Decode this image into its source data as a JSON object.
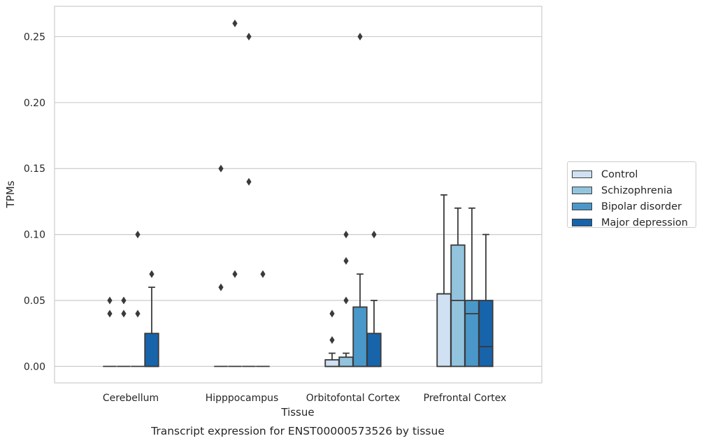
{
  "chart_data": {
    "type": "boxplot",
    "title": "Transcript expression for ENST00000573526 by tissue",
    "xlabel": "Tissue",
    "ylabel": "TPMs",
    "ylim": [
      -0.0125,
      0.273
    ],
    "yticks": [
      0.0,
      0.05,
      0.1,
      0.15,
      0.2,
      0.25
    ],
    "ytick_labels": [
      "0.00",
      "0.05",
      "0.10",
      "0.15",
      "0.20",
      "0.25"
    ],
    "grid": "horizontal",
    "legend_position": "right",
    "categories": [
      "Cerebellum",
      "Hipppocampus",
      "Orbitofontal Cortex",
      "Prefrontal Cortex"
    ],
    "series": [
      {
        "name": "Control",
        "color": "#cfe1f2",
        "boxes": [
          {
            "q1": 0,
            "median": 0,
            "q3": 0,
            "whislo": 0,
            "whishi": 0,
            "fliers": [
              0.04,
              0.05
            ]
          },
          {
            "q1": 0,
            "median": 0,
            "q3": 0,
            "whislo": 0,
            "whishi": 0,
            "fliers": [
              0.06,
              0.15
            ]
          },
          {
            "q1": 0,
            "median": 0,
            "q3": 0.005,
            "whislo": 0,
            "whishi": 0.01,
            "fliers": [
              0.02,
              0.04
            ]
          },
          {
            "q1": 0,
            "median": 0.055,
            "q3": 0.055,
            "whislo": 0,
            "whishi": 0.13,
            "fliers": []
          }
        ]
      },
      {
        "name": "Schizophrenia",
        "color": "#93c4de",
        "boxes": [
          {
            "q1": 0,
            "median": 0,
            "q3": 0,
            "whislo": 0,
            "whishi": 0,
            "fliers": [
              0.04,
              0.05
            ]
          },
          {
            "q1": 0,
            "median": 0,
            "q3": 0,
            "whislo": 0,
            "whishi": 0,
            "fliers": [
              0.07,
              0.26
            ]
          },
          {
            "q1": 0,
            "median": 0,
            "q3": 0.007,
            "whislo": 0,
            "whishi": 0.01,
            "fliers": [
              0.05,
              0.08,
              0.1
            ]
          },
          {
            "q1": 0,
            "median": 0.05,
            "q3": 0.092,
            "whislo": 0,
            "whishi": 0.12,
            "fliers": []
          }
        ]
      },
      {
        "name": "Bipolar disorder",
        "color": "#4a98c9",
        "boxes": [
          {
            "q1": 0,
            "median": 0,
            "q3": 0,
            "whislo": 0,
            "whishi": 0,
            "fliers": [
              0.04,
              0.1
            ]
          },
          {
            "q1": 0,
            "median": 0,
            "q3": 0,
            "whislo": 0,
            "whishi": 0,
            "fliers": [
              0.14,
              0.25
            ]
          },
          {
            "q1": 0,
            "median": 0,
            "q3": 0.045,
            "whislo": 0,
            "whishi": 0.07,
            "fliers": [
              0.25
            ]
          },
          {
            "q1": 0,
            "median": 0.04,
            "q3": 0.05,
            "whislo": 0,
            "whishi": 0.12,
            "fliers": []
          }
        ]
      },
      {
        "name": "Major depression",
        "color": "#1764ab",
        "boxes": [
          {
            "q1": 0,
            "median": 0,
            "q3": 0.025,
            "whislo": 0,
            "whishi": 0.06,
            "fliers": [
              0.07
            ]
          },
          {
            "q1": 0,
            "median": 0,
            "q3": 0,
            "whislo": 0,
            "whishi": 0,
            "fliers": [
              0.07
            ]
          },
          {
            "q1": 0,
            "median": 0,
            "q3": 0.025,
            "whislo": 0,
            "whishi": 0.05,
            "fliers": [
              0.1
            ]
          },
          {
            "q1": 0,
            "median": 0.015,
            "q3": 0.05,
            "whislo": 0,
            "whishi": 0.1,
            "fliers": []
          }
        ]
      }
    ]
  }
}
